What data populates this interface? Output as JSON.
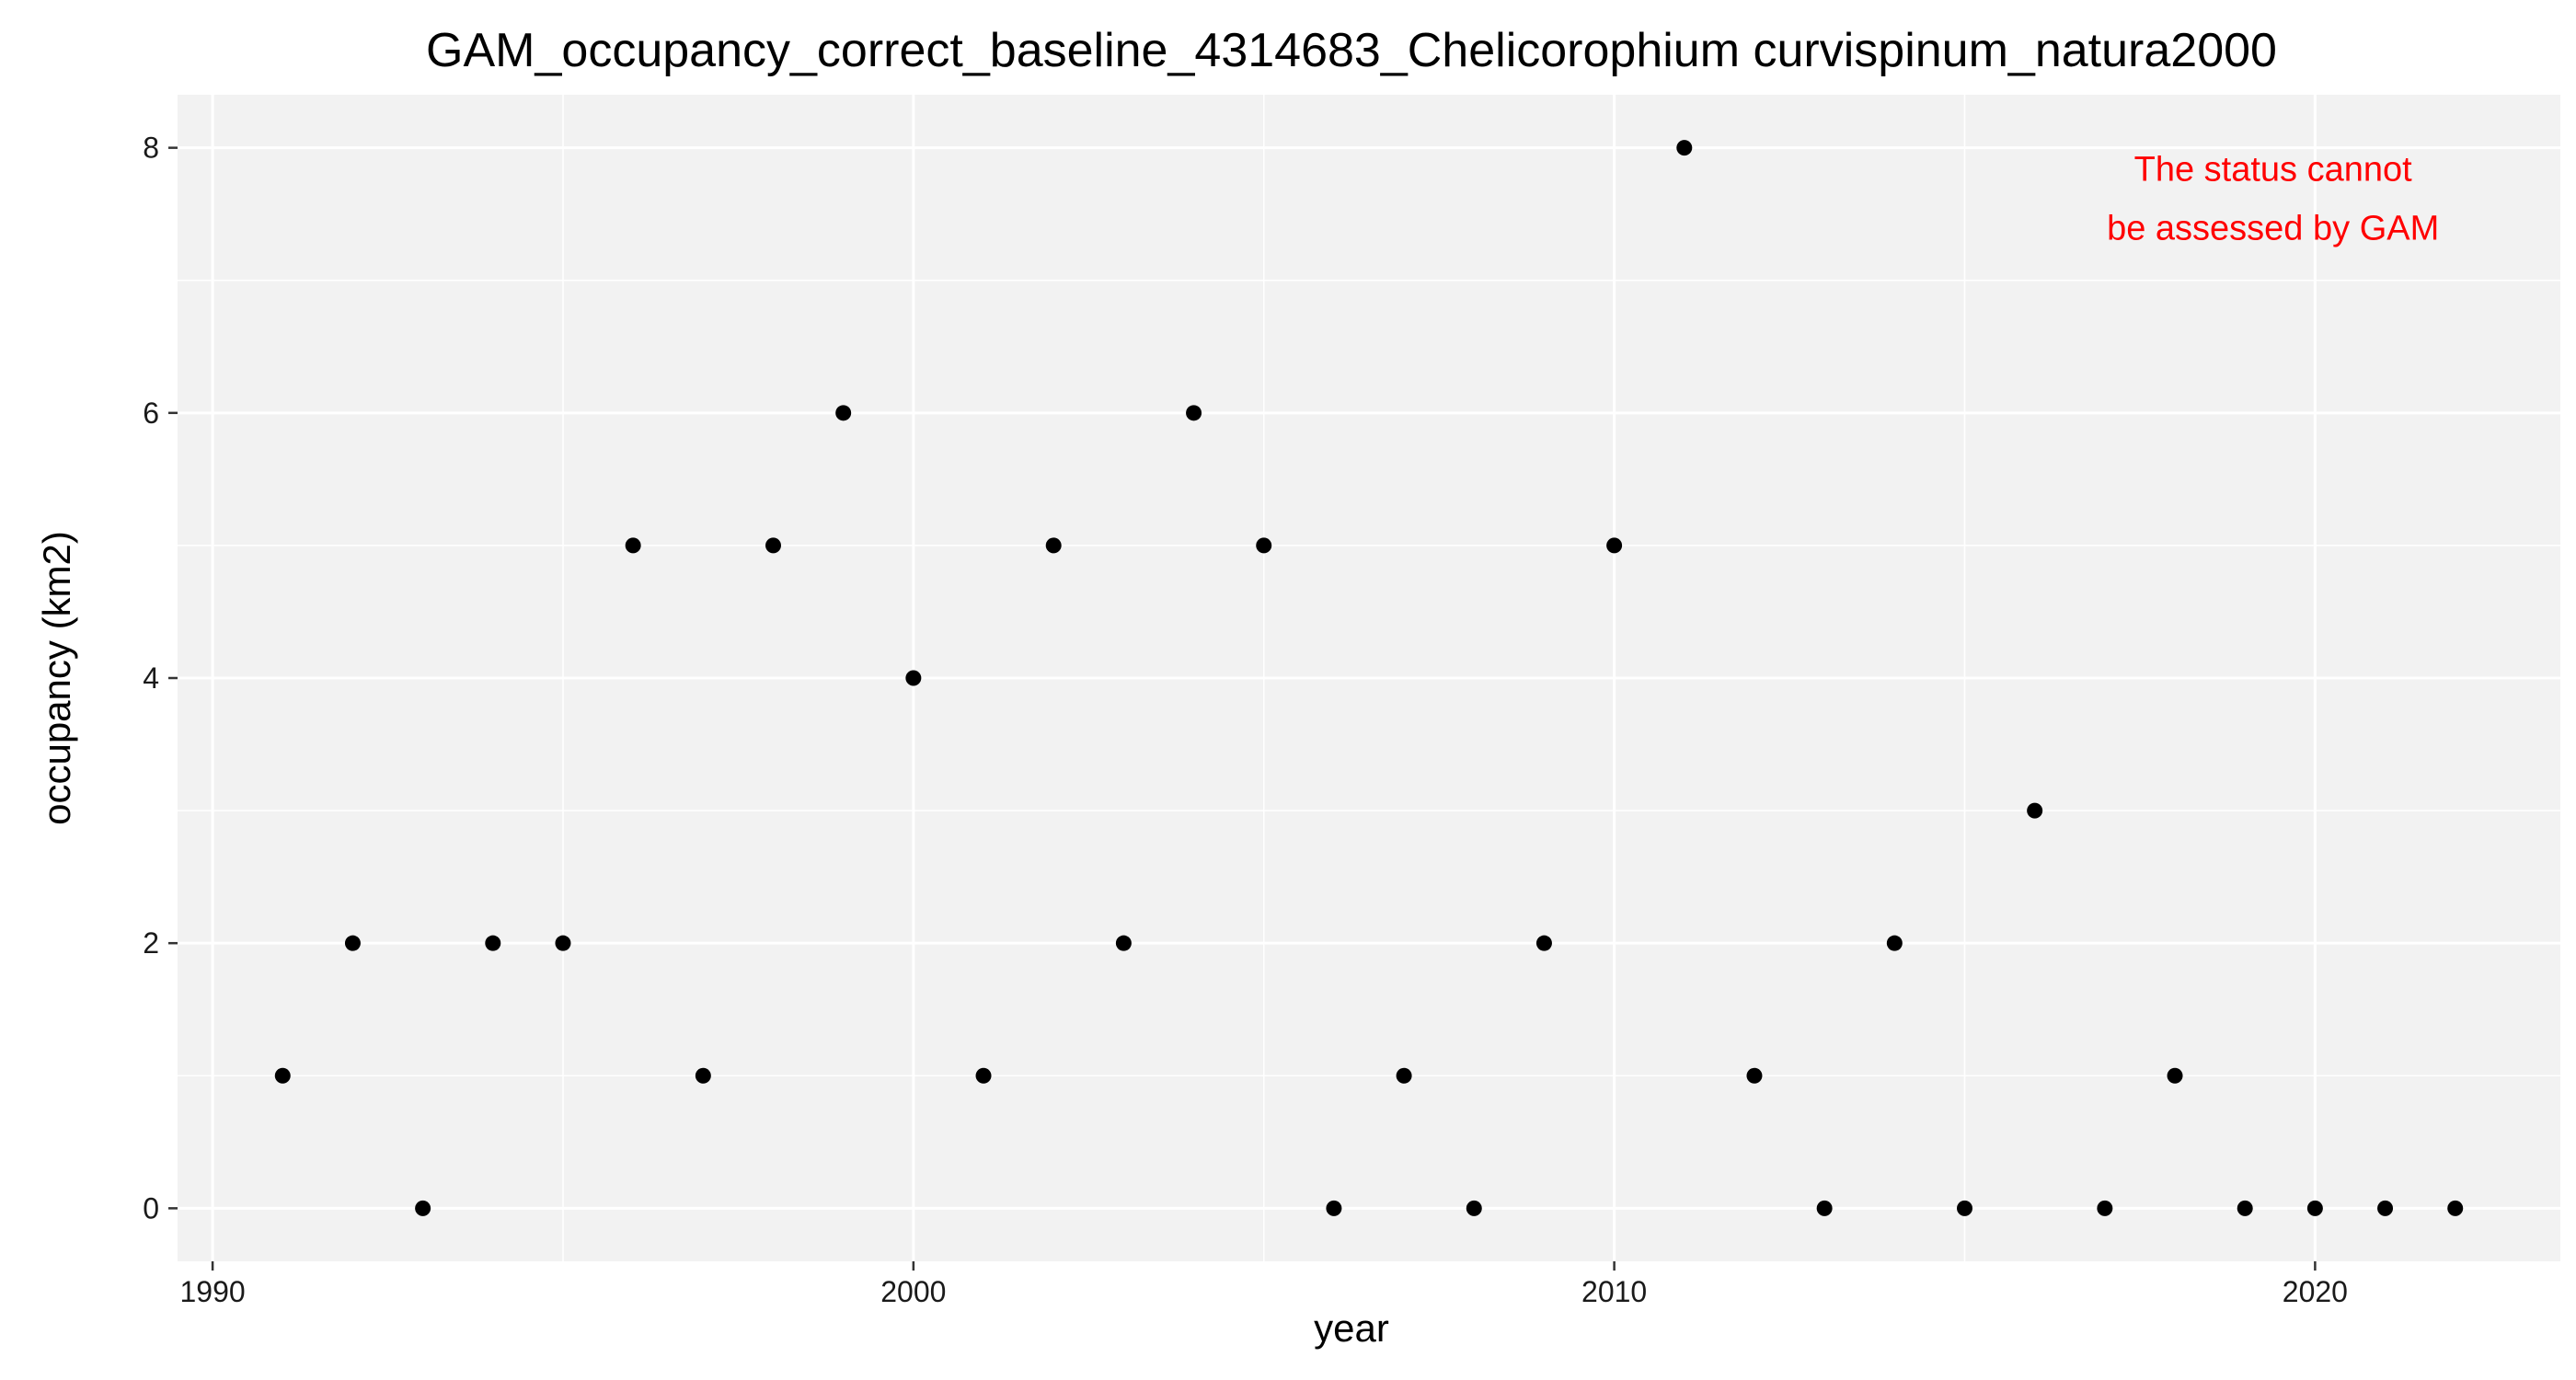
{
  "chart_data": {
    "type": "scatter",
    "title": "GAM_occupancy_correct_baseline_4314683_Chelicorophium curvispinum_natura2000",
    "xlabel": "year",
    "ylabel": "occupancy (km2)",
    "xlim": [
      1989.5,
      2023.5
    ],
    "ylim": [
      -0.4,
      8.4
    ],
    "x_ticks": [
      1990,
      2000,
      2010,
      2020
    ],
    "x_minor_ticks": [
      1995,
      2005,
      2015
    ],
    "y_ticks": [
      0,
      2,
      4,
      6,
      8
    ],
    "y_minor_ticks": [
      1,
      3,
      5,
      7
    ],
    "x": [
      1991,
      1992,
      1993,
      1994,
      1995,
      1996,
      1997,
      1998,
      1999,
      2000,
      2001,
      2002,
      2003,
      2004,
      2005,
      2006,
      2007,
      2008,
      2009,
      2010,
      2011,
      2012,
      2013,
      2014,
      2015,
      2016,
      2017,
      2018,
      2019,
      2020,
      2021,
      2022
    ],
    "y": [
      1,
      2,
      0,
      2,
      2,
      5,
      1,
      5,
      6,
      4,
      1,
      5,
      2,
      6,
      5,
      0,
      1,
      0,
      2,
      5,
      8,
      1,
      0,
      2,
      0,
      3,
      0,
      1,
      0,
      0,
      0,
      0
    ],
    "annotation": [
      "The status cannot",
      "be assessed by GAM"
    ],
    "grid": true,
    "colors": {
      "panel_background": "#f2f2f2",
      "grid": "#ffffff",
      "point": "#000000",
      "annotation": "#ff0000"
    }
  }
}
